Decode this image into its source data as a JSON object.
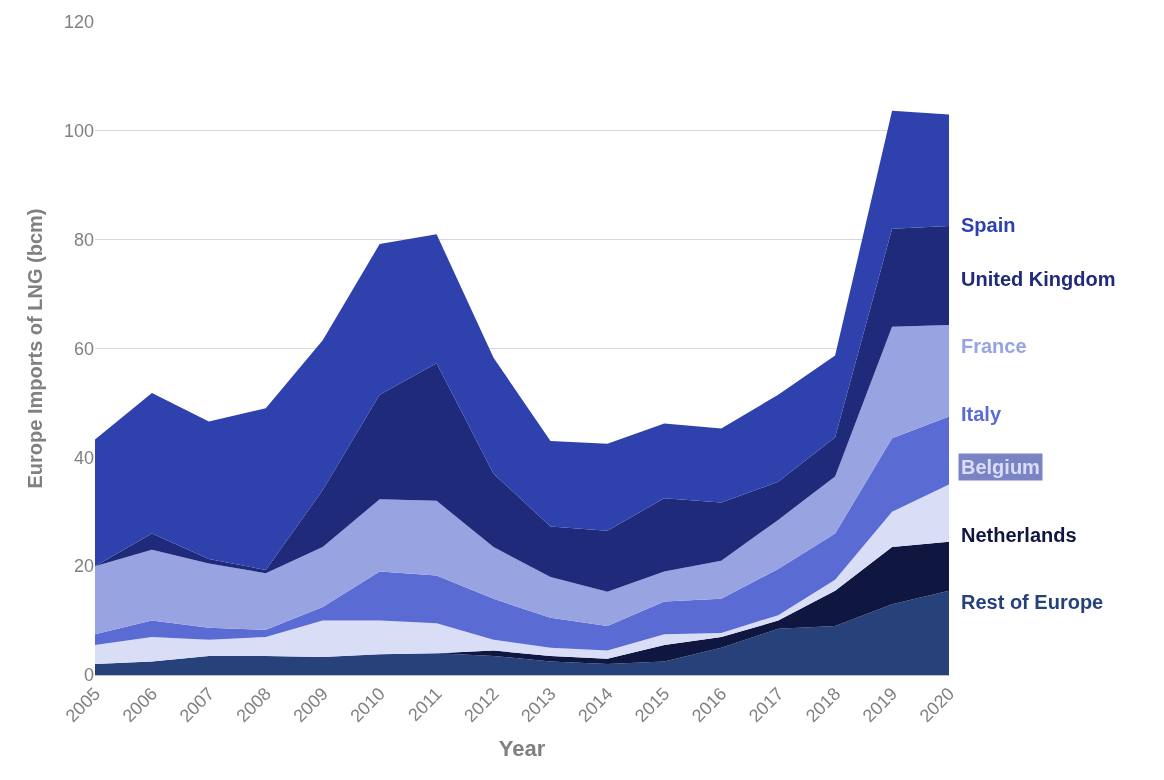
{
  "chart_data": {
    "type": "area",
    "stacked": true,
    "xlabel": "Year",
    "ylabel": "Europe Imports of LNG (bcm)",
    "categories": [
      "2005",
      "2006",
      "2007",
      "2008",
      "2009",
      "2010",
      "2011",
      "2012",
      "2013",
      "2014",
      "2015",
      "2016",
      "2017",
      "2018",
      "2019",
      "2020"
    ],
    "series": [
      {
        "name": "Rest of Europe",
        "color": "#27417a",
        "values": [
          2,
          2.5,
          3.5,
          3.5,
          3.3,
          3.8,
          4,
          3.5,
          2.5,
          2,
          2.5,
          5,
          8.5,
          9,
          13,
          15.5
        ]
      },
      {
        "name": "Netherlands",
        "color": "#0f1640",
        "values": [
          0,
          0,
          0,
          0,
          0,
          0,
          0,
          1,
          1,
          1,
          3,
          2,
          1.5,
          6.5,
          10.5,
          9
        ]
      },
      {
        "name": "Belgium",
        "color": "#d9ddf5",
        "values": [
          3.5,
          4.5,
          3,
          3.5,
          6.7,
          6.2,
          5.5,
          2,
          1.5,
          1.5,
          2,
          0.7,
          1,
          2,
          6.5,
          10.5
        ]
      },
      {
        "name": "Italy",
        "color": "#5b6bd4",
        "values": [
          2,
          3,
          2.2,
          1.3,
          2.5,
          9,
          8.8,
          7.5,
          5.5,
          4.5,
          6,
          6.3,
          8.5,
          8.5,
          13.5,
          12.5
        ]
      },
      {
        "name": "France",
        "color": "#98a3e2",
        "values": [
          12.5,
          13,
          11.8,
          10.4,
          11,
          13.3,
          13.7,
          9.5,
          7.5,
          6.3,
          5.5,
          7,
          9,
          10.5,
          20.5,
          16.8
        ]
      },
      {
        "name": "United Kingdom",
        "color": "#1f2a7a",
        "values": [
          0,
          3,
          0.8,
          0.6,
          10.5,
          19.2,
          25.3,
          13.5,
          9.3,
          11.2,
          13.5,
          10.7,
          7,
          7.2,
          18,
          18.2
        ]
      },
      {
        "name": "Spain",
        "color": "#2e41ad",
        "values": [
          23.3,
          25.8,
          25.3,
          29.7,
          27.5,
          27.7,
          23.7,
          21.3,
          15.7,
          16,
          13.7,
          13.6,
          16,
          15,
          21.7,
          20.5
        ]
      }
    ],
    "ylim": [
      0,
      120
    ],
    "yticks": [
      0,
      20,
      40,
      60,
      80,
      100,
      120
    ],
    "grid": "y",
    "legend": false
  }
}
